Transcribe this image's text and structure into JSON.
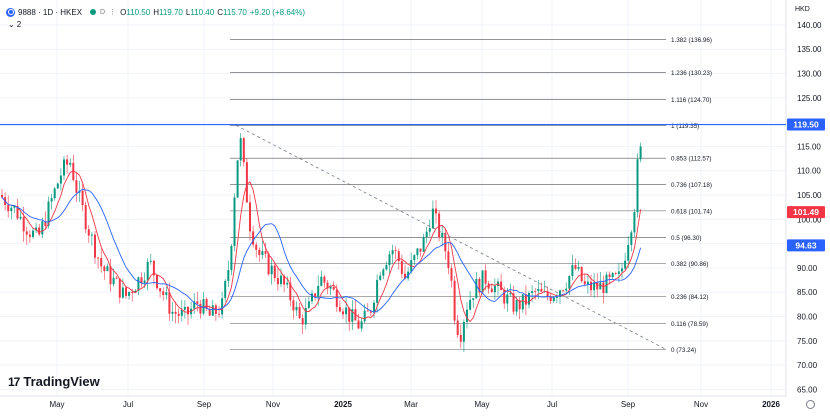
{
  "legend": {
    "symbol": "9888 · 1D · HKEX",
    "o_label": "O",
    "o_value": "110.50",
    "h_label": "H",
    "h_value": "119.70",
    "l_label": "L",
    "l_value": "110.40",
    "c_label": "C",
    "c_value": "115.70",
    "change": "+9.20 (+8.64%)",
    "collapse_count": "2"
  },
  "currency": "HKD",
  "watermark": "TradingView",
  "colors": {
    "up": "#089981",
    "down": "#f23645",
    "ma_red": "#f23645",
    "ma_blue": "#2962ff",
    "hline": "#2962ff",
    "fib": "#131722",
    "grid": "#f0f3fa"
  },
  "price_axis": {
    "ticks": [
      "140.00",
      "135.00",
      "130.00",
      "125.00",
      "120.00",
      "115.00",
      "110.00",
      "105.00",
      "100.00",
      "95.00",
      "90.00",
      "85.00",
      "80.00",
      "75.00",
      "70.00",
      "65.00"
    ]
  },
  "time_axis": {
    "ticks": [
      "May",
      "Jul",
      "Sep",
      "Nov",
      "2025",
      "Mar",
      "May",
      "Jul",
      "Sep",
      "Nov",
      "2026"
    ]
  },
  "price_badges": [
    {
      "label": "119.50",
      "value": 119.5,
      "color": "#2962ff"
    },
    {
      "label": "101.49",
      "value": 101.49,
      "color": "#f23645"
    },
    {
      "label": "94.63",
      "value": 94.63,
      "color": "#2962ff"
    }
  ],
  "fib_levels": [
    {
      "label": "1.382 (136.96)",
      "value": 136.96
    },
    {
      "label": "1.236 (130.23)",
      "value": 130.23
    },
    {
      "label": "1.116 (124.70)",
      "value": 124.7
    },
    {
      "label": "1 (119.35)",
      "value": 119.35
    },
    {
      "label": "0.853 (112.57)",
      "value": 112.57
    },
    {
      "label": "0.736 (107.18)",
      "value": 107.18
    },
    {
      "label": "0.618 (101.74)",
      "value": 101.74
    },
    {
      "label": "0.5 (96.30)",
      "value": 96.3
    },
    {
      "label": "0.382 (90.86)",
      "value": 90.86
    },
    {
      "label": "0.236 (84.12)",
      "value": 84.12
    },
    {
      "label": "0.116 (78.59)",
      "value": 78.59
    },
    {
      "label": "0 (73.24)",
      "value": 73.24
    }
  ],
  "chart_data": {
    "type": "candlestick",
    "ylim": [
      63,
      143
    ],
    "horizontal_line": 119.5,
    "trend_line": {
      "start_price": 119.35,
      "end_price": 73.24
    },
    "anchors": [
      [
        0,
        105
      ],
      [
        15,
        102
      ],
      [
        28,
        98
      ],
      [
        38,
        96
      ],
      [
        50,
        103
      ],
      [
        62,
        110
      ],
      [
        70,
        112
      ],
      [
        78,
        105
      ],
      [
        90,
        97
      ],
      [
        102,
        90
      ],
      [
        115,
        87
      ],
      [
        125,
        84
      ],
      [
        140,
        88
      ],
      [
        150,
        91
      ],
      [
        160,
        86
      ],
      [
        172,
        81
      ],
      [
        185,
        80
      ],
      [
        198,
        83
      ],
      [
        210,
        80
      ],
      [
        222,
        82
      ],
      [
        230,
        92
      ],
      [
        236,
        110
      ],
      [
        240,
        117
      ],
      [
        245,
        108
      ],
      [
        250,
        99
      ],
      [
        258,
        93
      ],
      [
        270,
        90
      ],
      [
        282,
        87
      ],
      [
        293,
        83
      ],
      [
        300,
        79
      ],
      [
        310,
        82
      ],
      [
        320,
        88
      ],
      [
        330,
        86
      ],
      [
        340,
        83
      ],
      [
        350,
        80
      ],
      [
        360,
        78
      ],
      [
        370,
        81
      ],
      [
        380,
        90
      ],
      [
        392,
        94
      ],
      [
        398,
        92
      ],
      [
        405,
        88
      ],
      [
        415,
        92
      ],
      [
        425,
        96
      ],
      [
        432,
        102
      ],
      [
        438,
        98
      ],
      [
        445,
        94
      ],
      [
        450,
        90
      ],
      [
        455,
        80
      ],
      [
        460,
        76
      ],
      [
        466,
        82
      ],
      [
        475,
        86
      ],
      [
        485,
        88
      ],
      [
        495,
        86
      ],
      [
        505,
        84
      ],
      [
        515,
        82
      ],
      [
        525,
        83
      ],
      [
        535,
        85
      ],
      [
        545,
        84
      ],
      [
        555,
        85
      ],
      [
        565,
        87
      ],
      [
        575,
        90
      ],
      [
        585,
        86
      ],
      [
        598,
        86
      ],
      [
        610,
        87
      ],
      [
        620,
        88
      ],
      [
        628,
        96
      ],
      [
        634,
        102
      ],
      [
        638,
        112
      ],
      [
        642,
        115
      ]
    ]
  }
}
